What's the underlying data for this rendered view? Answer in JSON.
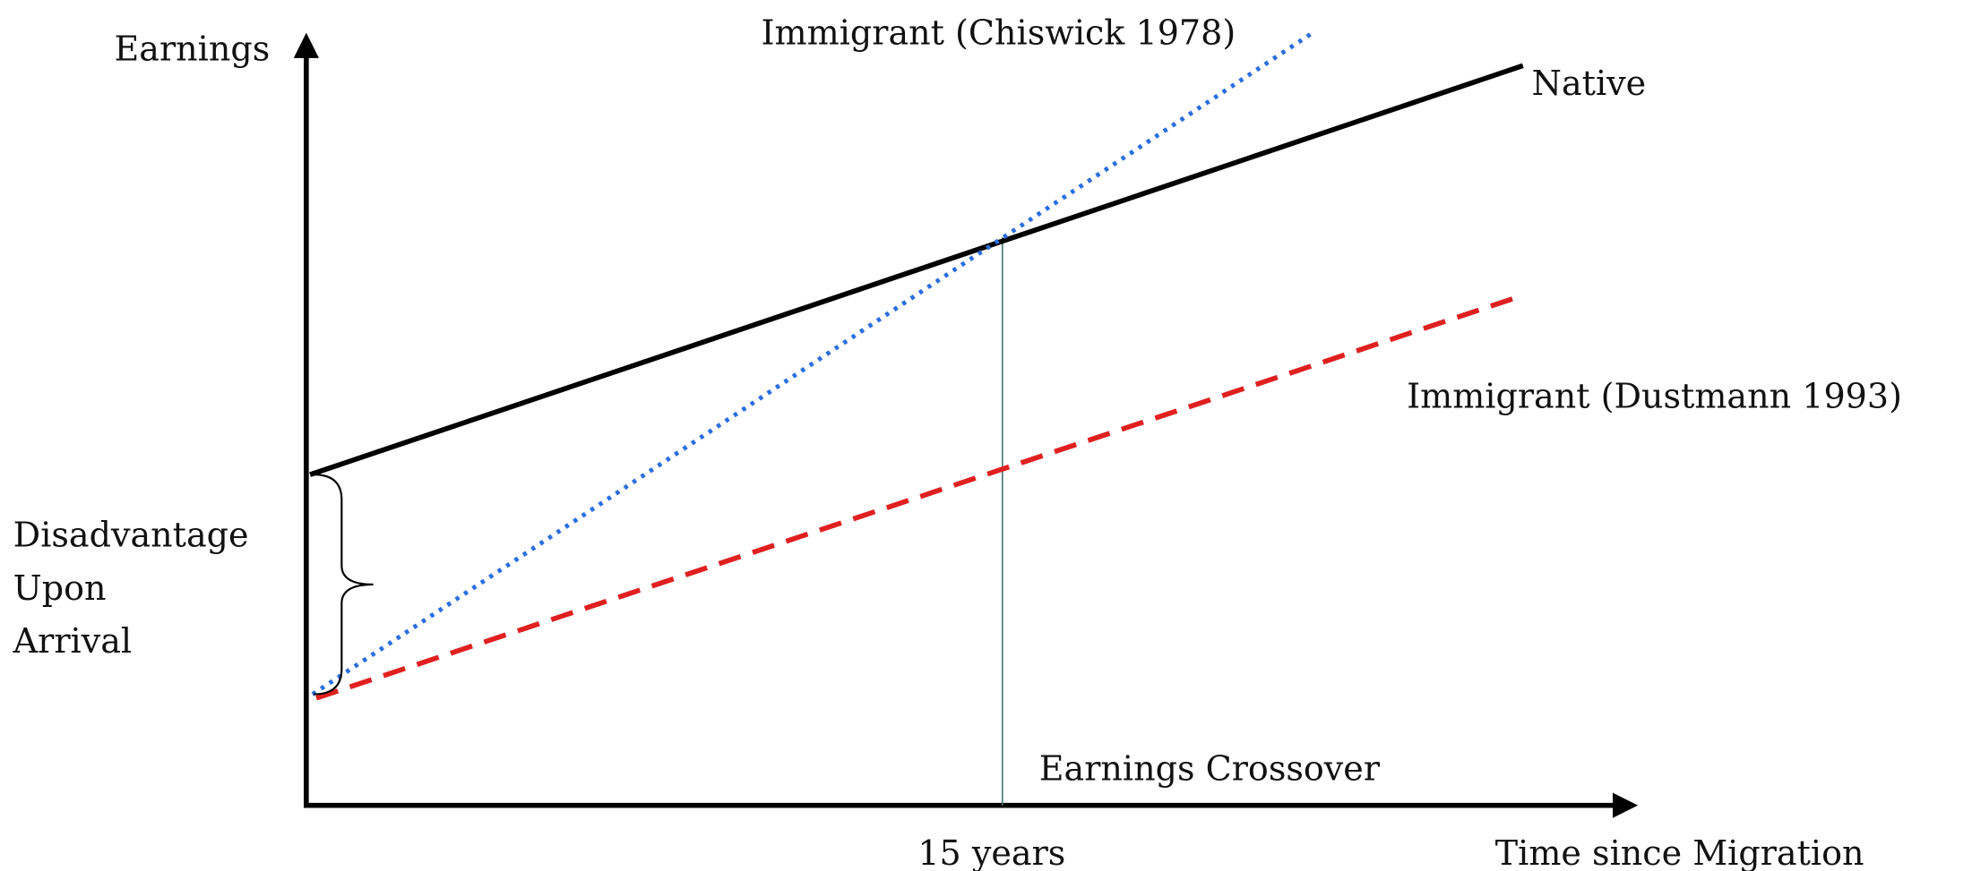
{
  "y_axis_label": "Earnings",
  "x_axis_label": "Time since Migration",
  "lines": {
    "chiswick": "Immigrant (Chiswick 1978)",
    "native": "Native",
    "dustmann": "Immigrant (Dustmann 1993)"
  },
  "gap_label": [
    "Disadvantage",
    "Upon",
    "Arrival"
  ],
  "crossover_label": "Earnings Crossover",
  "crossover_time": "15 years"
}
